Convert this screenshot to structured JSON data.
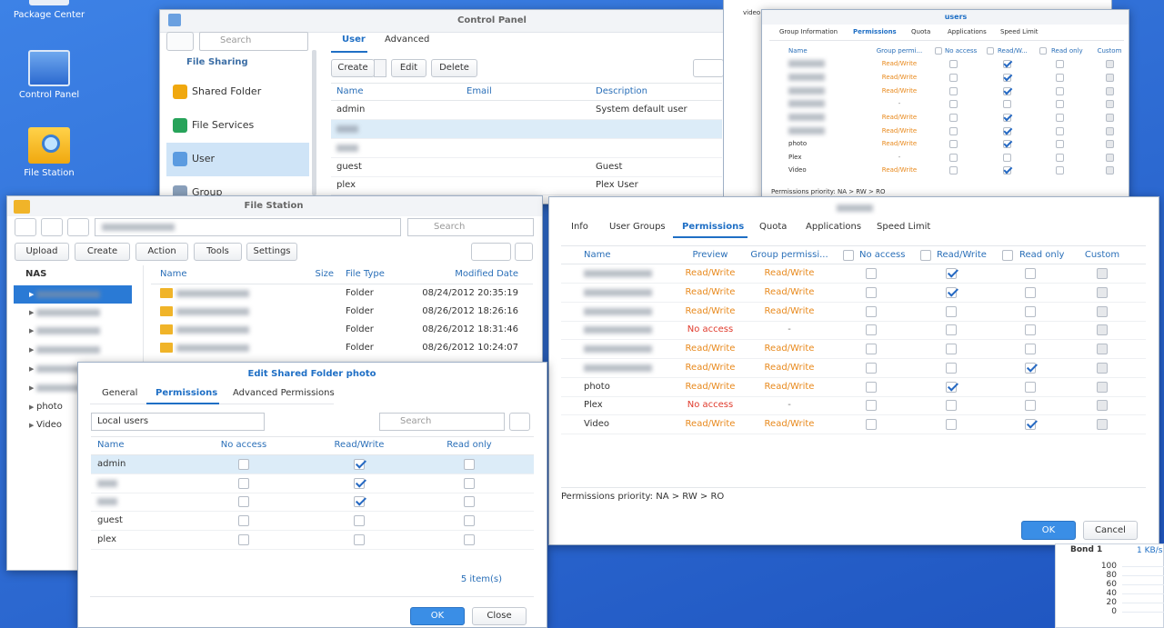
{
  "desktop": {
    "icons": [
      "Package Center",
      "Control Panel",
      "File Station"
    ]
  },
  "control_panel": {
    "title": "Control Panel",
    "search": "Search",
    "section": "File Sharing",
    "sidebar": [
      "Shared Folder",
      "File Services",
      "User",
      "Group"
    ],
    "tabs": [
      "User",
      "Advanced"
    ],
    "buttons": [
      "Create",
      "Edit",
      "Delete"
    ],
    "columns": [
      "Name",
      "Email",
      "Description"
    ],
    "rows": [
      {
        "name": "admin",
        "description": "System default user"
      },
      {
        "name": null
      },
      {
        "name": null
      },
      {
        "name": "guest",
        "description": "Guest"
      },
      {
        "name": "plex",
        "description": "Plex User"
      }
    ]
  },
  "background_window": {
    "label": "video"
  },
  "group_window": {
    "title": "users",
    "tabs": [
      "Group Information",
      "Permissions",
      "Quota",
      "Applications",
      "Speed Limit"
    ],
    "columns": [
      "Name",
      "Group permi...",
      "No access",
      "Read/W...",
      "Read only",
      "Custom"
    ],
    "rows": [
      {
        "name": null,
        "group": "Read/Write",
        "access": "rw"
      },
      {
        "name": null,
        "group": "Read/Write",
        "access": "rw"
      },
      {
        "name": null,
        "group": "Read/Write",
        "access": "rw"
      },
      {
        "name": null,
        "group": "-",
        "access": null
      },
      {
        "name": null,
        "group": "Read/Write",
        "access": "rw"
      },
      {
        "name": null,
        "group": "Read/Write",
        "access": "rw"
      },
      {
        "name": "photo",
        "group": "Read/Write",
        "access": "rw"
      },
      {
        "name": "Plex",
        "group": "-",
        "access": null
      },
      {
        "name": "Video",
        "group": "Read/Write",
        "access": "rw"
      }
    ],
    "footer": "Permissions priority: NA > RW > RO"
  },
  "file_station": {
    "title": "File Station",
    "search": "Search",
    "toolbar": [
      "Upload",
      "Create",
      "Action",
      "Tools",
      "Settings"
    ],
    "tree_root": "NAS",
    "tree": [
      null,
      null,
      null,
      null,
      null,
      null,
      "photo",
      "Video"
    ],
    "columns": [
      "Name",
      "Size",
      "File Type",
      "Modified Date"
    ],
    "files": [
      {
        "name": null,
        "type": "Folder",
        "modified": "08/24/2012 20:35:19"
      },
      {
        "name": null,
        "type": "Folder",
        "modified": "08/26/2012 18:26:16"
      },
      {
        "name": null,
        "type": "Folder",
        "modified": "08/26/2012 18:31:46"
      },
      {
        "name": null,
        "type": "Folder",
        "modified": "08/26/2012 10:24:07"
      }
    ]
  },
  "permission_window": {
    "tabs": [
      "Info",
      "User Groups",
      "Permissions",
      "Quota",
      "Applications",
      "Speed Limit"
    ],
    "columns": [
      "Name",
      "Preview",
      "Group permissi...",
      "No access",
      "Read/Write",
      "Read only",
      "Custom"
    ],
    "rows": [
      {
        "name": null,
        "preview": "Read/Write",
        "group": "Read/Write",
        "access": "rw"
      },
      {
        "name": null,
        "preview": "Read/Write",
        "group": "Read/Write",
        "access": "rw"
      },
      {
        "name": null,
        "preview": "Read/Write",
        "group": "Read/Write",
        "access": null
      },
      {
        "name": null,
        "preview": "No access",
        "group": "-",
        "access": null
      },
      {
        "name": null,
        "preview": "Read/Write",
        "group": "Read/Write",
        "access": null
      },
      {
        "name": null,
        "preview": "Read/Write",
        "group": "Read/Write",
        "access": "ro"
      },
      {
        "name": "photo",
        "preview": "Read/Write",
        "group": "Read/Write",
        "access": "rw"
      },
      {
        "name": "Plex",
        "preview": "No access",
        "group": "-",
        "access": null
      },
      {
        "name": "Video",
        "preview": "Read/Write",
        "group": "Read/Write",
        "access": "ro"
      }
    ],
    "footer": "Permissions priority: NA > RW > RO",
    "buttons": [
      "OK",
      "Cancel"
    ]
  },
  "edit_dialog": {
    "title": "Edit Shared Folder photo",
    "tabs": [
      "General",
      "Permissions",
      "Advanced Permissions"
    ],
    "filter": "Local users",
    "search": "Search",
    "columns": [
      "Name",
      "No access",
      "Read/Write",
      "Read only"
    ],
    "rows": [
      {
        "name": "admin",
        "access": "rw"
      },
      {
        "name": null,
        "access": "rw"
      },
      {
        "name": null,
        "access": "rw"
      },
      {
        "name": "guest",
        "access": null
      },
      {
        "name": "plex",
        "access": null
      }
    ],
    "count": "5 item(s)",
    "buttons": [
      "OK",
      "Close"
    ]
  },
  "widget": {
    "title": "Bond 1",
    "rate": "1 KB/s",
    "ylim": [
      0,
      100
    ],
    "yticks": [
      100,
      80,
      60,
      40,
      20,
      0
    ]
  }
}
